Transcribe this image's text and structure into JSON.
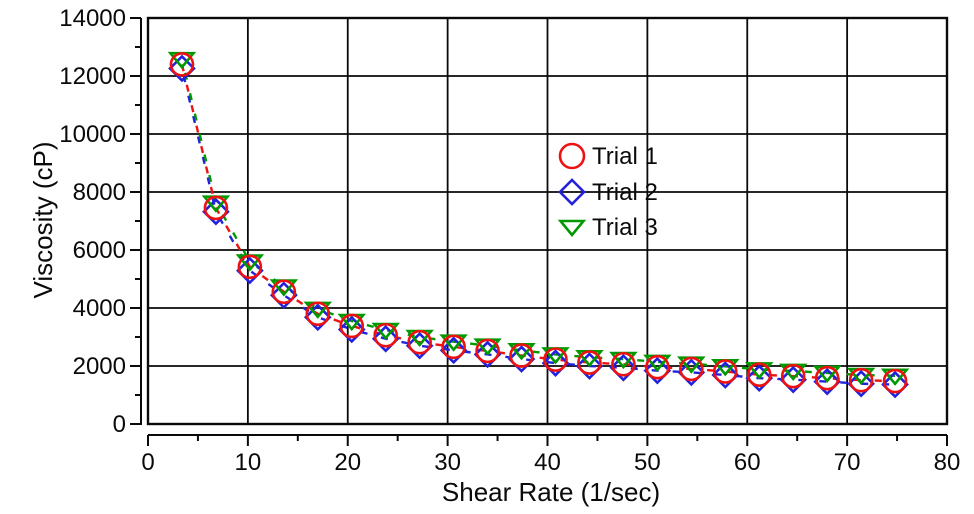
{
  "chart_data": {
    "type": "scatter",
    "title": "",
    "xlabel": "Shear Rate (1/sec)",
    "ylabel": "Viscosity (cP)",
    "xlim": [
      0,
      80
    ],
    "ylim": [
      0,
      14000
    ],
    "x_major_ticks": [
      0,
      10,
      20,
      30,
      40,
      50,
      60,
      70,
      80
    ],
    "x_minor_step": 5,
    "y_major_ticks": [
      0,
      2000,
      4000,
      6000,
      8000,
      10000,
      12000,
      14000
    ],
    "y_minor_step": 1000,
    "grid": true,
    "legend_position": "inside upper-middle",
    "line_style": "dashed, tricolor interleaved",
    "x": [
      3.4,
      6.8,
      10.2,
      13.6,
      17.0,
      20.4,
      23.8,
      27.2,
      30.6,
      34.0,
      37.4,
      40.8,
      44.2,
      47.6,
      51.0,
      54.4,
      57.8,
      61.2,
      64.6,
      68.0,
      71.4,
      74.8
    ],
    "series": [
      {
        "name": "Trial 1",
        "marker": "circle",
        "color": "#ee1111",
        "values": [
          12400,
          7450,
          5420,
          4560,
          3800,
          3380,
          3060,
          2820,
          2660,
          2520,
          2360,
          2220,
          2120,
          2060,
          1960,
          1900,
          1810,
          1700,
          1650,
          1580,
          1510,
          1480
        ]
      },
      {
        "name": "Trial 2",
        "marker": "diamond",
        "color": "#2222dd",
        "values": [
          12260,
          7320,
          5290,
          4440,
          3680,
          3260,
          2940,
          2700,
          2540,
          2400,
          2240,
          2100,
          2000,
          1940,
          1840,
          1780,
          1690,
          1580,
          1530,
          1460,
          1390,
          1360
        ]
      },
      {
        "name": "Trial 3",
        "marker": "triangle-down",
        "color": "#009900",
        "values": [
          12580,
          7630,
          5600,
          4740,
          3970,
          3550,
          3240,
          3000,
          2840,
          2700,
          2540,
          2400,
          2300,
          2240,
          2140,
          2080,
          1990,
          1880,
          1830,
          1760,
          1690,
          1660
        ]
      }
    ],
    "axis_color": "#0a0a0a"
  }
}
